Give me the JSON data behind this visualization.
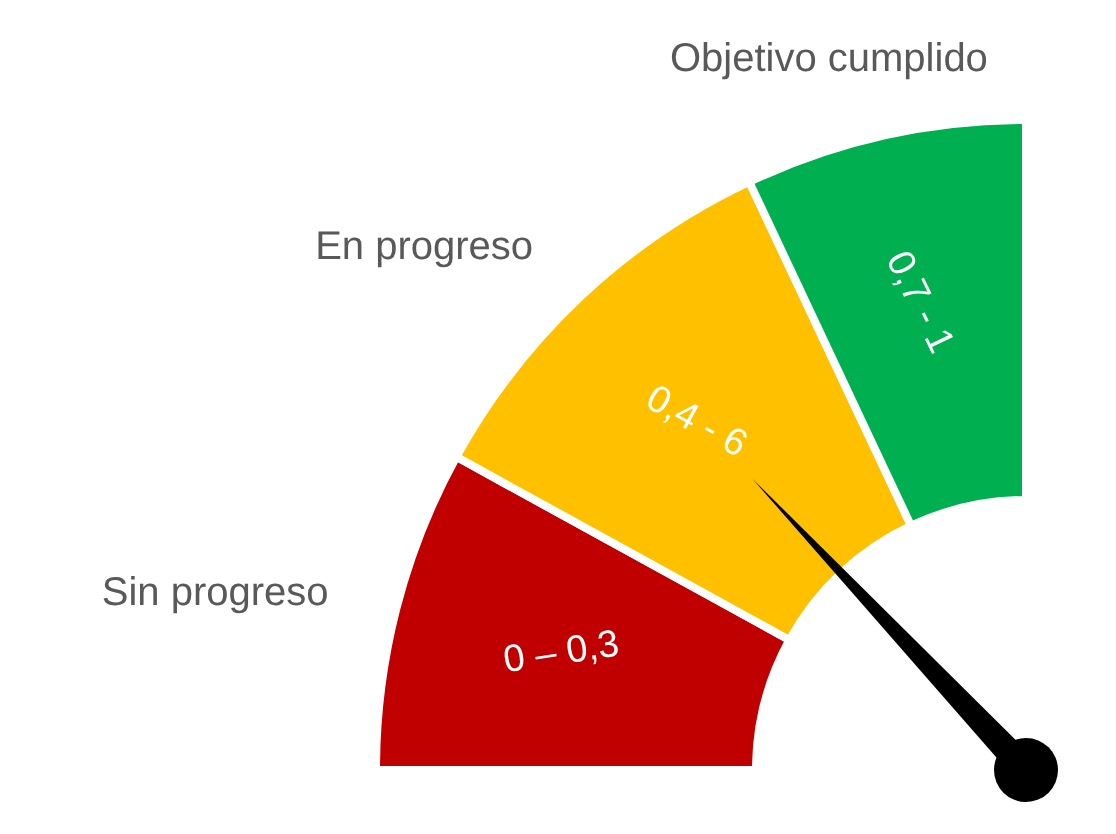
{
  "chart_data": {
    "type": "donut",
    "categories": [
      "0 – 0,3",
      "0,4 - 6",
      "0,7 - 1"
    ],
    "values": [
      32,
      40,
      28
    ],
    "colors": [
      "#c00000",
      "#ffc000",
      "#00b050"
    ],
    "needle": "0,4 - 6",
    "annotations": [
      {
        "text": "Sin progreso",
        "x": "0 – 0,3"
      },
      {
        "text": "En progreso",
        "x": "0,4 - 6"
      },
      {
        "text": "Objetivo cumplido",
        "x": "0,7 - 1"
      }
    ]
  }
}
